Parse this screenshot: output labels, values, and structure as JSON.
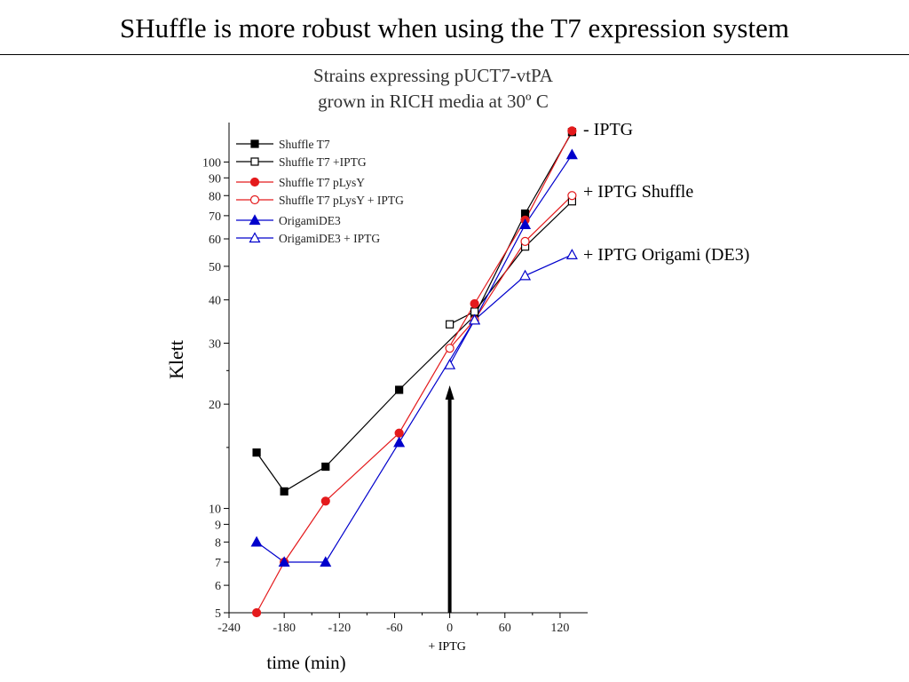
{
  "slide": {
    "title": "SHuffle is more robust when using the T7 expression system"
  },
  "chart_data": {
    "type": "line",
    "title": "Strains expressing pUCT7-vtPA\ngrown in RICH media at 30º C",
    "xlabel": "time (min)",
    "ylabel": "Klett",
    "xlim": [
      -240,
      150
    ],
    "ylim": [
      5,
      130
    ],
    "yscale": "log",
    "grid": false,
    "legend_position": "top-left",
    "x_ticks": [
      -240,
      -180,
      -120,
      -60,
      0,
      60,
      120
    ],
    "x_tick_labels": [
      "-240",
      "-180",
      "-120",
      "-60",
      "0",
      "60",
      "120"
    ],
    "y_ticks": [
      5,
      6,
      7,
      8,
      9,
      10,
      20,
      30,
      40,
      50,
      60,
      70,
      80,
      90,
      100
    ],
    "y_tick_labels": [
      "5",
      "6",
      "7",
      "8",
      "9",
      "10",
      "20",
      "30",
      "40",
      "50",
      "60",
      "70",
      "80",
      "90",
      "100"
    ],
    "series": [
      {
        "name": "Shuffle T7",
        "color": "#000000",
        "marker": "square",
        "filled": true,
        "x": [
          -210,
          -180,
          -135,
          -55,
          27,
          82,
          133
        ],
        "y": [
          14.5,
          11.2,
          13.2,
          22,
          36,
          71,
          122
        ]
      },
      {
        "name": "Shuffle T7 +IPTG",
        "color": "#000000",
        "marker": "square",
        "filled": false,
        "x": [
          0,
          27,
          82,
          133
        ],
        "y": [
          34,
          37,
          57,
          77
        ]
      },
      {
        "name": "Shuffle T7 pLysY",
        "color": "#e41a1c",
        "marker": "circle",
        "filled": true,
        "x": [
          -210,
          -180,
          -135,
          -55,
          27,
          82,
          133
        ],
        "y": [
          5,
          7,
          10.5,
          16.5,
          39,
          68,
          123
        ]
      },
      {
        "name": "Shuffle T7 pLysY + IPTG",
        "color": "#e41a1c",
        "marker": "circle",
        "filled": false,
        "x": [
          0,
          27,
          82,
          133
        ],
        "y": [
          29,
          35,
          59,
          80
        ]
      },
      {
        "name": "OrigamiDE3",
        "color": "#0000cc",
        "marker": "triangle",
        "filled": true,
        "x": [
          -210,
          -180,
          -135,
          -55,
          27,
          82,
          133
        ],
        "y": [
          8,
          7,
          7,
          15.5,
          35,
          66,
          105
        ]
      },
      {
        "name": "OrigamiDE3 + IPTG",
        "color": "#0000cc",
        "marker": "triangle",
        "filled": false,
        "x": [
          0,
          27,
          82,
          133
        ],
        "y": [
          26,
          35,
          47,
          54
        ]
      }
    ],
    "annotations": [
      {
        "text": "- IPTG",
        "near_y": 122
      },
      {
        "text": "+ IPTG Shuffle",
        "near_y": 79
      },
      {
        "text": "+ IPTG Origami (DE3)",
        "near_y": 54
      },
      {
        "text": "+ IPTG",
        "arrow_at_x": 0
      }
    ]
  }
}
